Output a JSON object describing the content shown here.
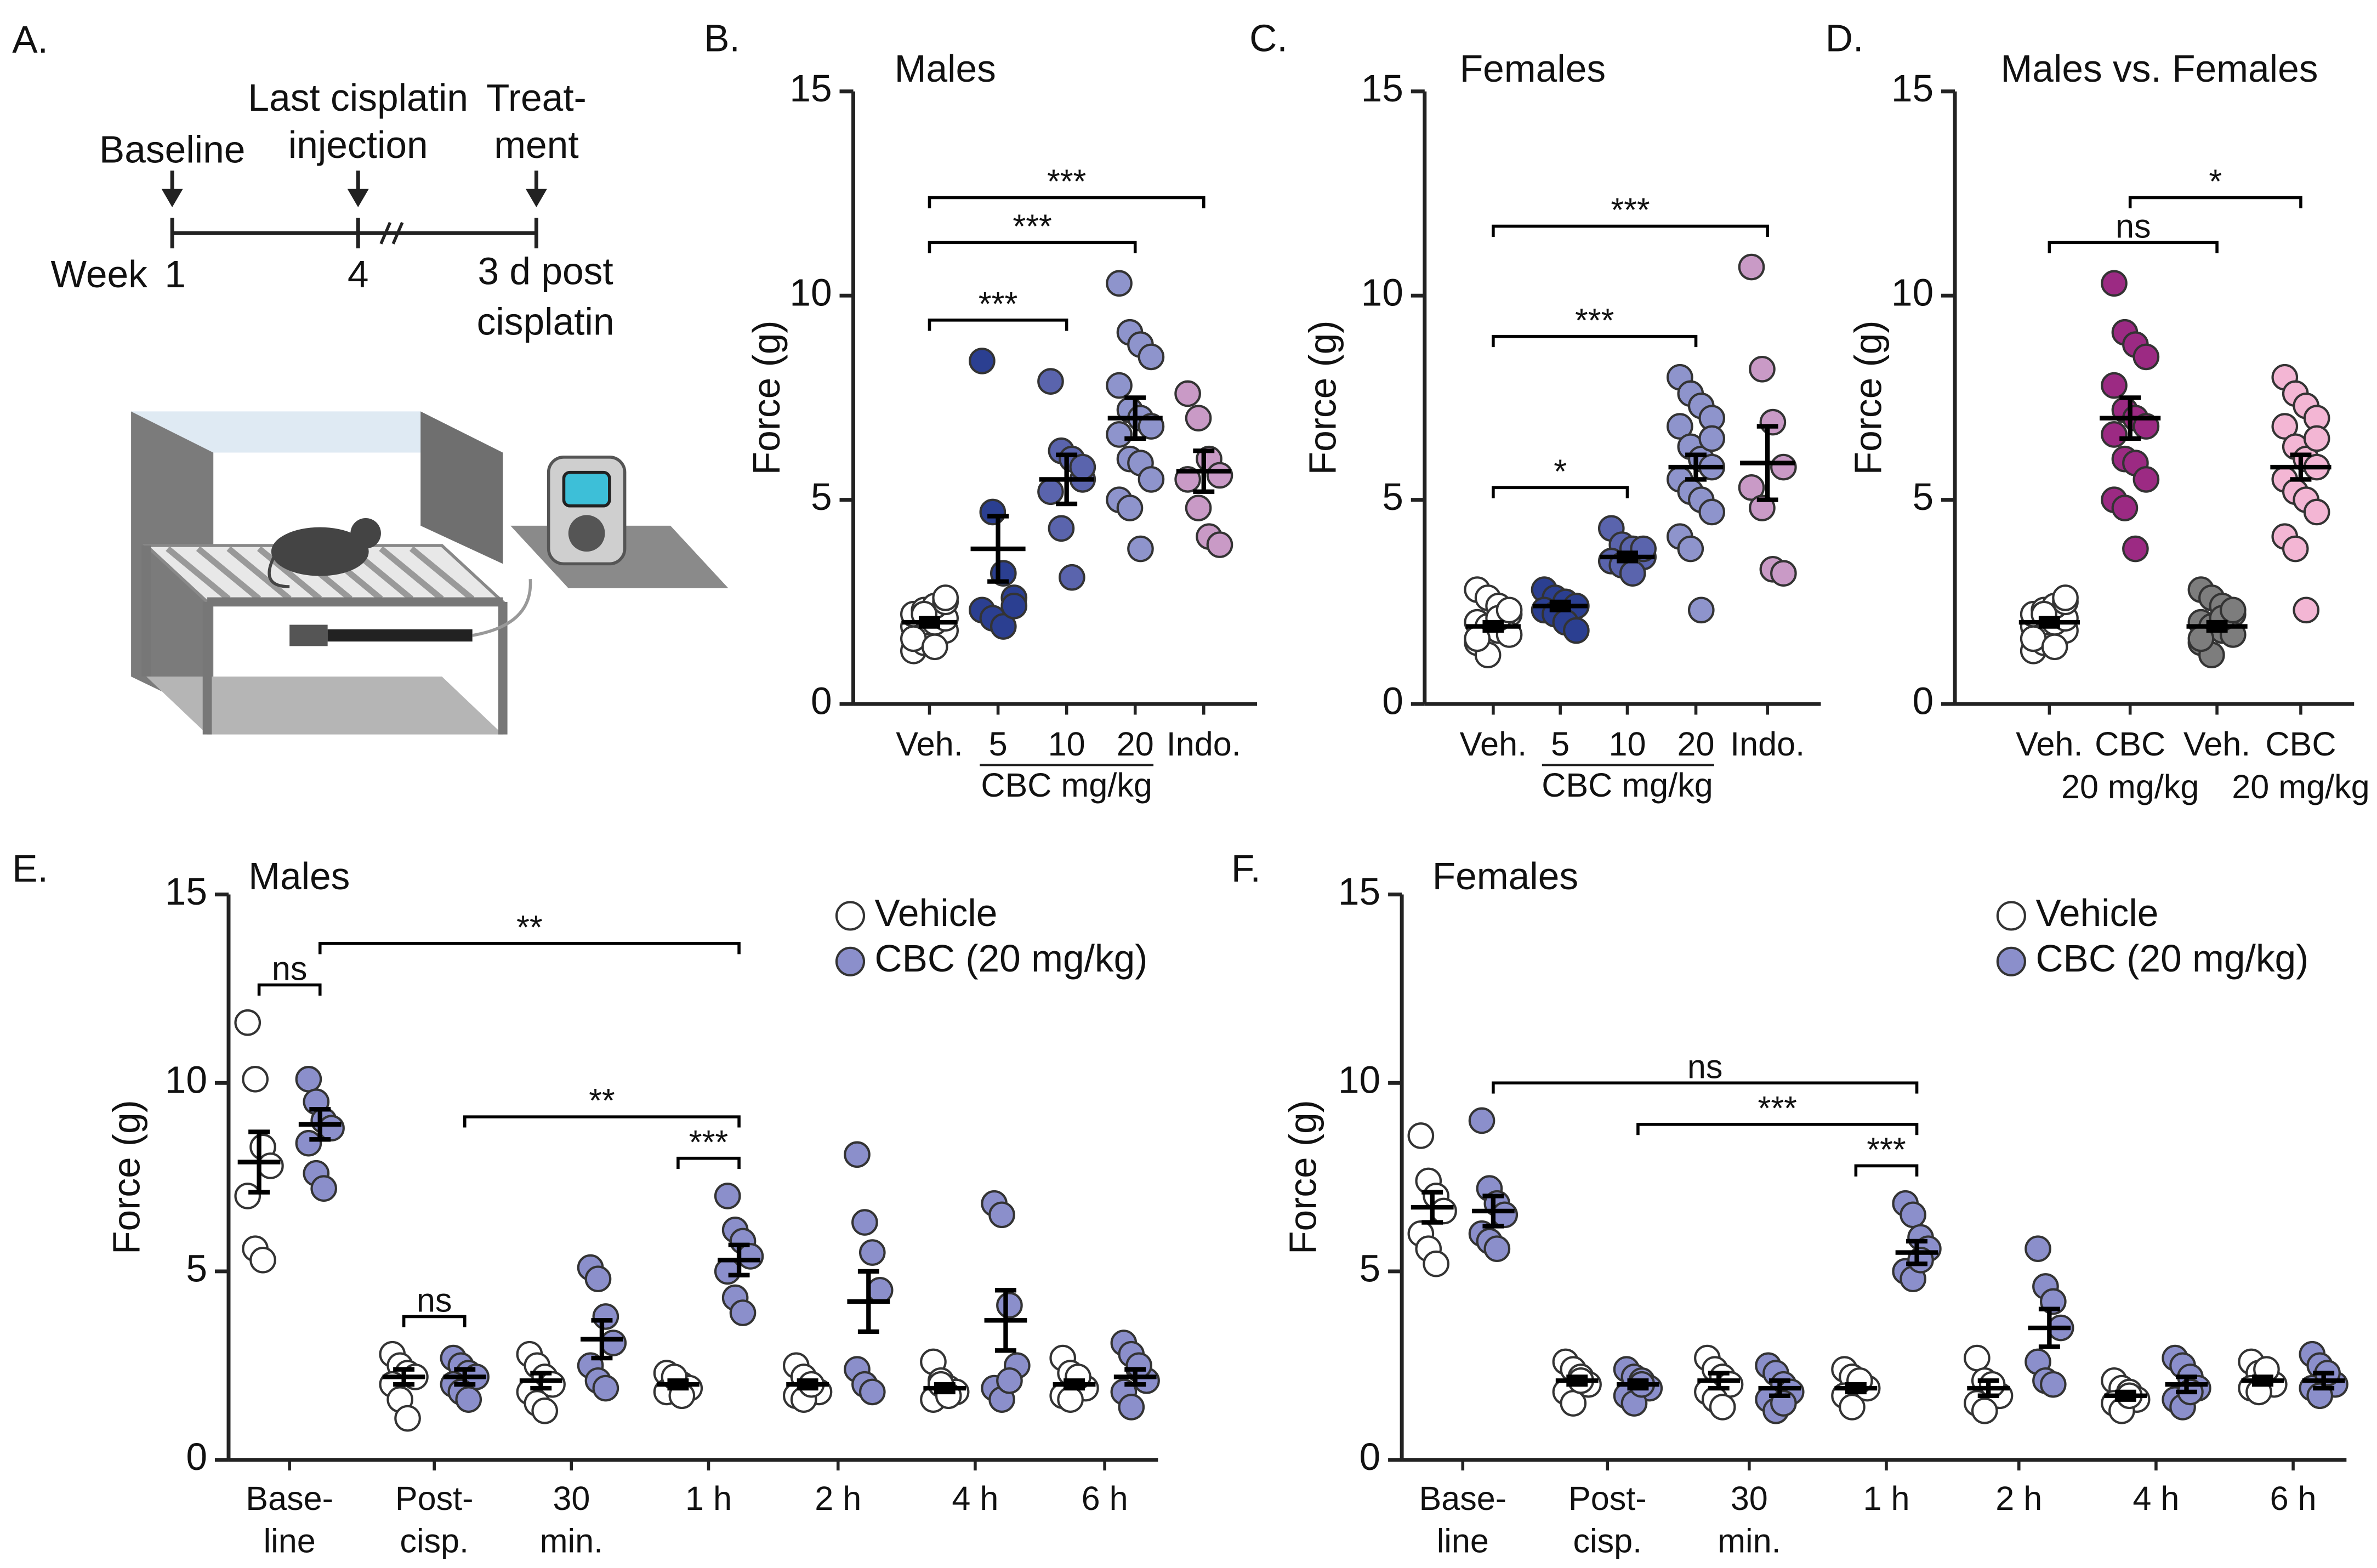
{
  "diagram": {
    "label": "A.",
    "event_1": "Baseline",
    "event_2": [
      "Last cisplatin",
      "injection"
    ],
    "event_3": [
      "Treat-",
      "ment"
    ],
    "axis_label": "Week",
    "tick_1": "1",
    "tick_2": "4",
    "tick_3": [
      "3 d post",
      "cisplatin"
    ]
  },
  "chart_data": [
    {
      "type": "dot",
      "panel_label": "B.",
      "title": "Males",
      "y_label": "Force (g)",
      "ylim": [
        0,
        15
      ],
      "yticks": [
        0,
        5,
        10,
        15
      ],
      "categories": [
        "Veh.",
        "5",
        "10",
        "20",
        "Indo."
      ],
      "group_label": "CBC mg/kg",
      "groups": [
        {
          "color": "#ffffff",
          "points": [
            1.3,
            1.5,
            1.7,
            1.8,
            1.9,
            2.0,
            2.0,
            2.1,
            2.2,
            2.3,
            2.4,
            2.5,
            1.6,
            2.2,
            1.4,
            2.6
          ],
          "mean": 2.0,
          "sem": 0.1
        },
        {
          "color": "#2b3f91",
          "points": [
            8.4,
            4.7,
            3.2,
            2.6,
            2.3,
            2.1,
            1.9,
            2.4
          ],
          "mean": 3.8,
          "sem": 0.8
        },
        {
          "color": "#5a64ad",
          "points": [
            7.9,
            6.2,
            6.0,
            5.5,
            5.2,
            4.3,
            3.1,
            5.8
          ],
          "mean": 5.5,
          "sem": 0.6
        },
        {
          "color": "#8e94cc",
          "points": [
            10.3,
            9.1,
            8.8,
            8.5,
            7.8,
            7.2,
            7.0,
            6.8,
            6.6,
            6.0,
            5.9,
            5.5,
            5.0,
            4.8,
            3.8
          ],
          "mean": 7.0,
          "sem": 0.5
        },
        {
          "color": "#c99ac6",
          "points": [
            7.6,
            7.0,
            6.0,
            5.6,
            5.5,
            4.8,
            4.1,
            3.9
          ],
          "mean": 5.7,
          "sem": 0.5
        }
      ],
      "comparisons": [
        {
          "from": 0,
          "to": 2,
          "label": "***"
        },
        {
          "from": 0,
          "to": 3,
          "label": "***"
        },
        {
          "from": 0,
          "to": 4,
          "label": "***"
        }
      ]
    },
    {
      "type": "dot",
      "panel_label": "C.",
      "title": "Females",
      "y_label": "Force (g)",
      "ylim": [
        0,
        15
      ],
      "yticks": [
        0,
        5,
        10,
        15
      ],
      "categories": [
        "Veh.",
        "5",
        "10",
        "20",
        "Indo."
      ],
      "group_label": "CBC mg/kg",
      "groups": [
        {
          "color": "#ffffff",
          "points": [
            2.8,
            2.6,
            2.4,
            2.2,
            2.0,
            1.9,
            1.8,
            1.7,
            1.5,
            1.2,
            2.1,
            2.3,
            1.6
          ],
          "mean": 1.9,
          "sem": 0.1
        },
        {
          "color": "#2b3f91",
          "points": [
            2.8,
            2.6,
            2.5,
            2.4,
            2.3,
            2.2,
            2.0,
            1.8
          ],
          "mean": 2.4,
          "sem": 0.1
        },
        {
          "color": "#5a64ad",
          "points": [
            4.3,
            3.9,
            3.8,
            3.6,
            3.5,
            3.4,
            3.2,
            3.8
          ],
          "mean": 3.6,
          "sem": 0.1
        },
        {
          "color": "#8e94cc",
          "points": [
            8.0,
            7.6,
            7.3,
            7.0,
            6.8,
            6.3,
            6.0,
            5.8,
            5.5,
            5.2,
            5.0,
            4.7,
            4.1,
            3.8,
            2.3,
            6.5
          ],
          "mean": 5.8,
          "sem": 0.3
        },
        {
          "color": "#c99ac6",
          "points": [
            10.7,
            8.2,
            6.9,
            5.8,
            5.3,
            4.8,
            3.3,
            3.2
          ],
          "mean": 5.9,
          "sem": 0.9
        }
      ],
      "comparisons": [
        {
          "from": 0,
          "to": 2,
          "label": "*"
        },
        {
          "from": 0,
          "to": 3,
          "label": "***"
        },
        {
          "from": 0,
          "to": 4,
          "label": "***"
        }
      ]
    },
    {
      "type": "dot",
      "panel_label": "D.",
      "title": "Males vs. Females",
      "y_label": "Force (g)",
      "ylim": [
        0,
        15
      ],
      "yticks": [
        0,
        5,
        10,
        15
      ],
      "categories": [
        "Veh.",
        [
          "CBC",
          "20 mg/kg"
        ],
        "Veh.",
        [
          "CBC",
          "20 mg/kg"
        ]
      ],
      "groups": [
        {
          "color": "#ffffff",
          "points": [
            1.3,
            1.5,
            1.7,
            1.8,
            1.9,
            2.0,
            2.0,
            2.1,
            2.2,
            2.3,
            2.4,
            2.5,
            1.6,
            2.2,
            1.4,
            2.6
          ],
          "mean": 2.0,
          "sem": 0.1
        },
        {
          "color": "#9c2a83",
          "points": [
            10.3,
            9.1,
            8.8,
            8.5,
            7.8,
            7.2,
            7.0,
            6.8,
            6.6,
            6.0,
            5.9,
            5.5,
            5.0,
            4.8,
            3.8
          ],
          "mean": 7.0,
          "sem": 0.5
        },
        {
          "color": "#7d7d7d",
          "points": [
            2.8,
            2.6,
            2.4,
            2.2,
            2.0,
            1.9,
            1.8,
            1.7,
            1.5,
            1.2,
            2.1,
            2.3,
            1.6
          ],
          "mean": 1.9,
          "sem": 0.1
        },
        {
          "color": "#f3b6d4",
          "points": [
            8.0,
            7.6,
            7.3,
            7.0,
            6.8,
            6.3,
            6.0,
            5.8,
            5.5,
            5.2,
            5.0,
            4.7,
            4.1,
            3.8,
            2.3,
            6.5
          ],
          "mean": 5.8,
          "sem": 0.3
        }
      ],
      "comparisons": [
        {
          "from": 0,
          "to": 2,
          "label": "ns"
        },
        {
          "from": 1,
          "to": 3,
          "label": "*"
        }
      ]
    },
    {
      "type": "dot",
      "panel_label": "E.",
      "title": "Males",
      "y_label": "Force (g)",
      "ylim": [
        0,
        15
      ],
      "yticks": [
        0,
        5,
        10,
        15
      ],
      "categories": [
        [
          "Base-",
          "line"
        ],
        [
          "Post-",
          "cisp."
        ],
        [
          "30",
          "min."
        ],
        "1 h",
        "2 h",
        "4 h",
        "6 h"
      ],
      "series": [
        {
          "name": "Vehicle",
          "color": "#ffffff",
          "points": [
            [
              11.6,
              10.1,
              8.3,
              7.8,
              7.0,
              5.6,
              5.3
            ],
            [
              2.8,
              2.5,
              2.3,
              2.2,
              2.0,
              1.6,
              1.1
            ],
            [
              2.8,
              2.5,
              2.2,
              2.0,
              1.8,
              1.5,
              1.3
            ],
            [
              2.3,
              2.1,
              2.0,
              1.9,
              1.8,
              2.2,
              1.7
            ],
            [
              2.5,
              2.2,
              1.9,
              1.8,
              1.7,
              1.6,
              2.0
            ],
            [
              2.6,
              2.1,
              1.9,
              1.8,
              1.6,
              2.0,
              1.7
            ],
            [
              2.7,
              2.3,
              2.0,
              1.9,
              1.7,
              1.6,
              2.2
            ]
          ],
          "mean": [
            7.9,
            2.2,
            2.1,
            2.0,
            2.0,
            1.9,
            2.0
          ],
          "sem": [
            0.8,
            0.2,
            0.2,
            0.1,
            0.1,
            0.1,
            0.1
          ]
        },
        {
          "name": "CBC (20 mg/kg)",
          "color": "#8b8fcb",
          "points": [
            [
              10.1,
              9.5,
              9.0,
              8.8,
              8.4,
              7.6,
              7.2
            ],
            [
              2.7,
              2.5,
              2.3,
              2.2,
              2.0,
              1.8,
              1.6
            ],
            [
              5.1,
              4.8,
              3.8,
              3.1,
              2.5,
              2.1,
              1.9
            ],
            [
              7.0,
              6.1,
              5.8,
              5.4,
              5.0,
              4.3,
              3.9
            ],
            [
              8.1,
              6.3,
              5.5,
              4.5,
              2.4,
              2.0,
              1.8
            ],
            [
              6.8,
              6.5,
              4.1,
              2.5,
              1.9,
              1.6,
              2.1
            ],
            [
              3.1,
              2.8,
              2.4,
              2.1,
              1.8,
              1.4,
              2.5
            ]
          ],
          "mean": [
            8.9,
            2.2,
            3.2,
            5.3,
            4.2,
            3.7,
            2.2
          ],
          "sem": [
            0.4,
            0.2,
            0.5,
            0.4,
            0.8,
            0.8,
            0.2
          ]
        }
      ],
      "comparisons": [
        {
          "from": [
            0,
            0
          ],
          "to": [
            0,
            1
          ],
          "label": "ns"
        },
        {
          "from": [
            3,
            0
          ],
          "to": [
            3,
            1
          ],
          "label": "***"
        },
        {
          "from": [
            1,
            0
          ],
          "to": [
            1,
            1
          ],
          "label": "ns"
        },
        {
          "from": [
            1,
            1
          ],
          "to": [
            3,
            1
          ],
          "label": "**"
        },
        {
          "from": [
            0,
            1
          ],
          "to": [
            3,
            1
          ],
          "label": "**"
        }
      ]
    },
    {
      "type": "dot",
      "panel_label": "F.",
      "title": "Females",
      "y_label": "Force (g)",
      "ylim": [
        0,
        15
      ],
      "yticks": [
        0,
        5,
        10,
        15
      ],
      "categories": [
        [
          "Base-",
          "line"
        ],
        [
          "Post-",
          "cisp."
        ],
        [
          "30",
          "min."
        ],
        "1 h",
        "2 h",
        "4 h",
        "6 h"
      ],
      "series": [
        {
          "name": "Vehicle",
          "color": "#ffffff",
          "points": [
            [
              8.6,
              7.4,
              7.0,
              6.6,
              6.0,
              5.6,
              5.2
            ],
            [
              2.6,
              2.4,
              2.2,
              2.0,
              1.8,
              1.5,
              2.1
            ],
            [
              2.7,
              2.4,
              2.2,
              2.0,
              1.8,
              1.6,
              1.4
            ],
            [
              2.4,
              2.2,
              2.0,
              1.9,
              1.7,
              1.4,
              2.1
            ],
            [
              2.7,
              2.1,
              1.9,
              1.7,
              1.5,
              1.3,
              2.0
            ],
            [
              2.1,
              1.9,
              1.8,
              1.6,
              1.5,
              1.3,
              1.7
            ],
            [
              2.6,
              2.3,
              2.2,
              2.0,
              1.9,
              1.8,
              2.4
            ]
          ],
          "mean": [
            6.7,
            2.1,
            2.1,
            1.9,
            1.9,
            1.7,
            2.1
          ],
          "sem": [
            0.4,
            0.1,
            0.2,
            0.1,
            0.2,
            0.1,
            0.1
          ]
        },
        {
          "name": "CBC (20 mg/kg)",
          "color": "#8b8fcb",
          "points": [
            [
              9.0,
              7.2,
              6.8,
              6.5,
              6.0,
              5.8,
              5.6
            ],
            [
              2.4,
              2.2,
              2.1,
              1.9,
              1.7,
              1.5,
              2.0
            ],
            [
              2.5,
              2.3,
              2.0,
              1.8,
              1.6,
              1.3,
              1.5
            ],
            [
              6.8,
              6.5,
              5.9,
              5.6,
              5.0,
              4.8,
              5.3
            ],
            [
              5.6,
              4.6,
              4.2,
              3.5,
              2.6,
              2.1,
              2.0
            ],
            [
              2.7,
              2.5,
              2.2,
              1.9,
              1.6,
              1.4,
              1.8
            ],
            [
              2.8,
              2.5,
              2.2,
              2.0,
              1.9,
              1.7,
              2.3
            ]
          ],
          "mean": [
            6.6,
            2.0,
            1.9,
            5.5,
            3.5,
            2.0,
            2.1
          ],
          "sem": [
            0.4,
            0.1,
            0.2,
            0.3,
            0.5,
            0.2,
            0.2
          ]
        }
      ],
      "comparisons": [
        {
          "from": [
            3,
            0
          ],
          "to": [
            3,
            1
          ],
          "label": "***"
        },
        {
          "from": [
            1,
            1
          ],
          "to": [
            3,
            1
          ],
          "label": "***"
        },
        {
          "from": [
            0,
            1
          ],
          "to": [
            3,
            1
          ],
          "label": "ns"
        }
      ]
    }
  ]
}
